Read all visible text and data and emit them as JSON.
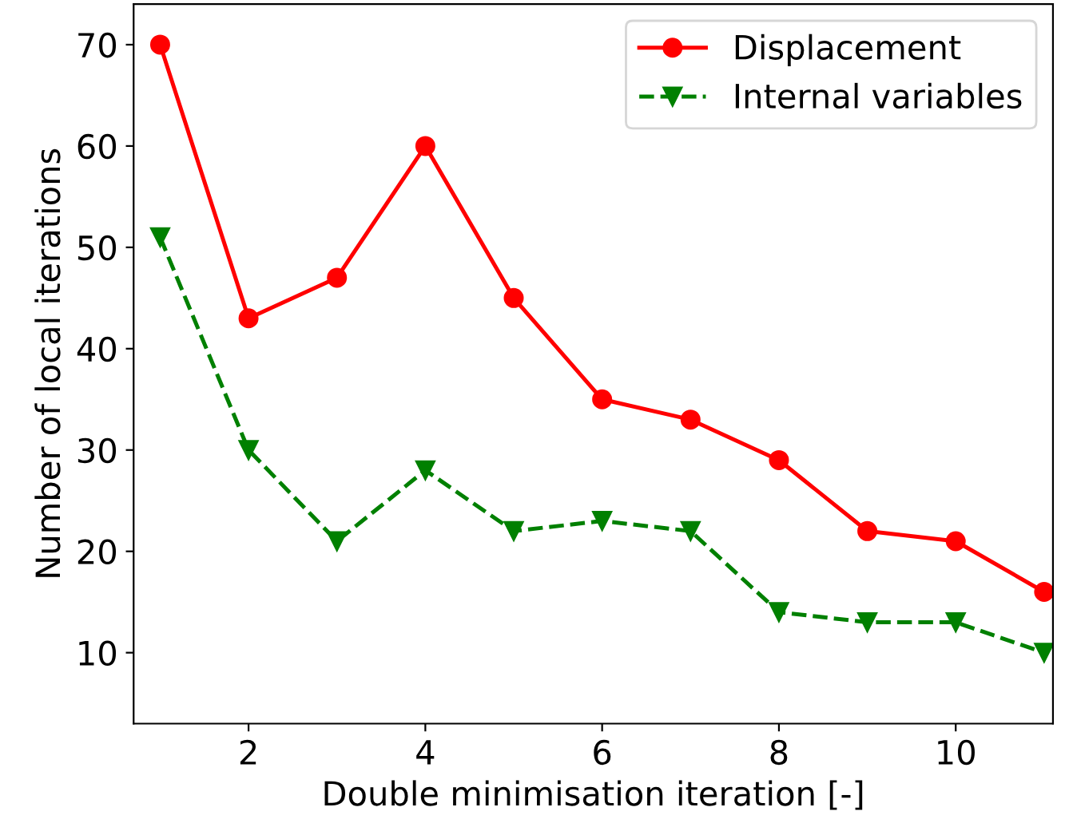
{
  "chart_data": {
    "type": "line",
    "xlabel": "Double minimisation iteration [-]",
    "ylabel": "Number of local iterations",
    "x": [
      1,
      2,
      3,
      4,
      5,
      6,
      7,
      8,
      9,
      10,
      11
    ],
    "series": [
      {
        "name": "Displacement",
        "color": "#ff0000",
        "marker": "circle",
        "line_style": "solid",
        "values": [
          70,
          43,
          47,
          60,
          45,
          35,
          33,
          29,
          22,
          21,
          16
        ]
      },
      {
        "name": "Internal variables",
        "color": "#008000",
        "marker": "triangle_down",
        "line_style": "dashed",
        "values": [
          51,
          30,
          21,
          28,
          22,
          23,
          22,
          14,
          13,
          13,
          10
        ]
      }
    ],
    "xlim": [
      0.7,
      11.1
    ],
    "xticks": [
      2,
      4,
      6,
      8,
      10
    ],
    "ylim": [
      3,
      74
    ],
    "yticks": [
      10,
      20,
      30,
      40,
      50,
      60,
      70
    ],
    "grid": false,
    "legend": "top right"
  }
}
